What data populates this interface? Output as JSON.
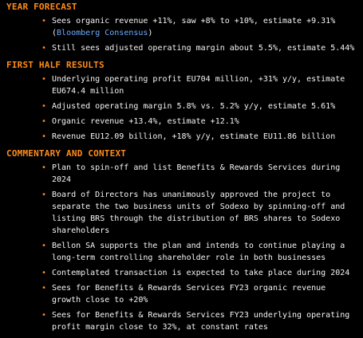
{
  "sections": {
    "year_forecast": {
      "title": "YEAR FORECAST",
      "items": [
        {
          "text": "Sees organic revenue +11%, saw +8% to +10%, estimate +9.31%",
          "open": "(",
          "link": "Bloomberg Consensus",
          "close": ")"
        },
        {
          "text": "Still sees adjusted operating margin about 5.5%, estimate 5.44%"
        }
      ]
    },
    "first_half": {
      "title": "FIRST HALF RESULTS",
      "items": [
        "Underlying operating profit EU704 million, +31% y/y, estimate EU674.4 million",
        "Adjusted operating margin 5.8% vs. 5.2% y/y, estimate 5.61%",
        "Organic revenue +13.4%, estimate +12.1%",
        "Revenue EU12.09 billion, +18% y/y, estimate EU11.86 billion"
      ]
    },
    "commentary": {
      "title": "COMMENTARY AND CONTEXT",
      "items": [
        "Plan to spin-off and list Benefits & Rewards Services during 2024",
        "Board of Directors has unanimously approved the project to separate the two business units of Sodexo by spinning-off and listing BRS through the distribution of BRS shares to Sodexo shareholders",
        "Bellon SA supports the plan and intends to continue playing a long-term controlling shareholder role in both businesses",
        "Contemplated transaction is expected to take place during 2024",
        "Sees for Benefits & Rewards Services FY23 organic revenue growth close to +20%",
        "Sees for Benefits & Rewards Services FY23 underlying operating profit margin close to 32%, at constant rates"
      ]
    }
  },
  "bullet_glyph": "•",
  "colors": {
    "background": "#000000",
    "heading": "#ff8c1a",
    "text": "#f5f5f5",
    "link": "#6aaeff"
  }
}
